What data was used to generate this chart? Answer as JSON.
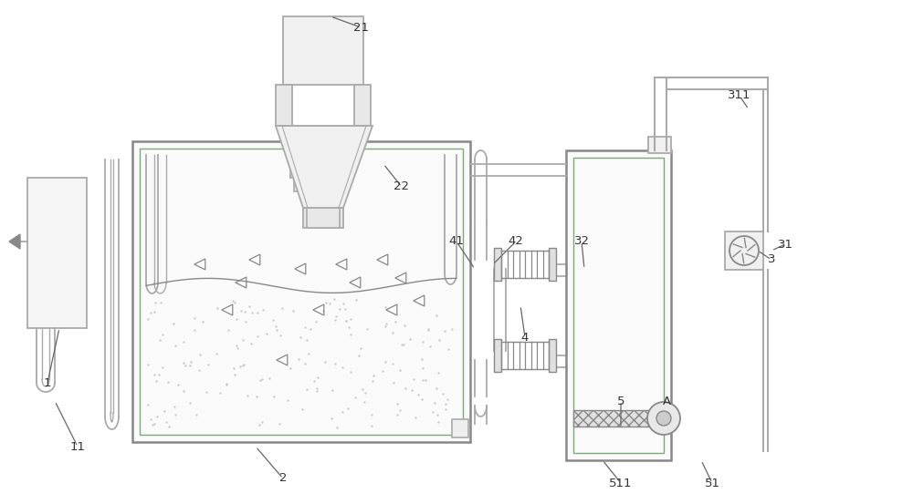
{
  "bg_color": "#ffffff",
  "lc": "#aaaaaa",
  "lc2": "#888888",
  "gc": "#7aaa7a",
  "lc_dark": "#666666",
  "label_color": "#333333",
  "figsize": [
    10.0,
    5.53
  ],
  "dpi": 100
}
